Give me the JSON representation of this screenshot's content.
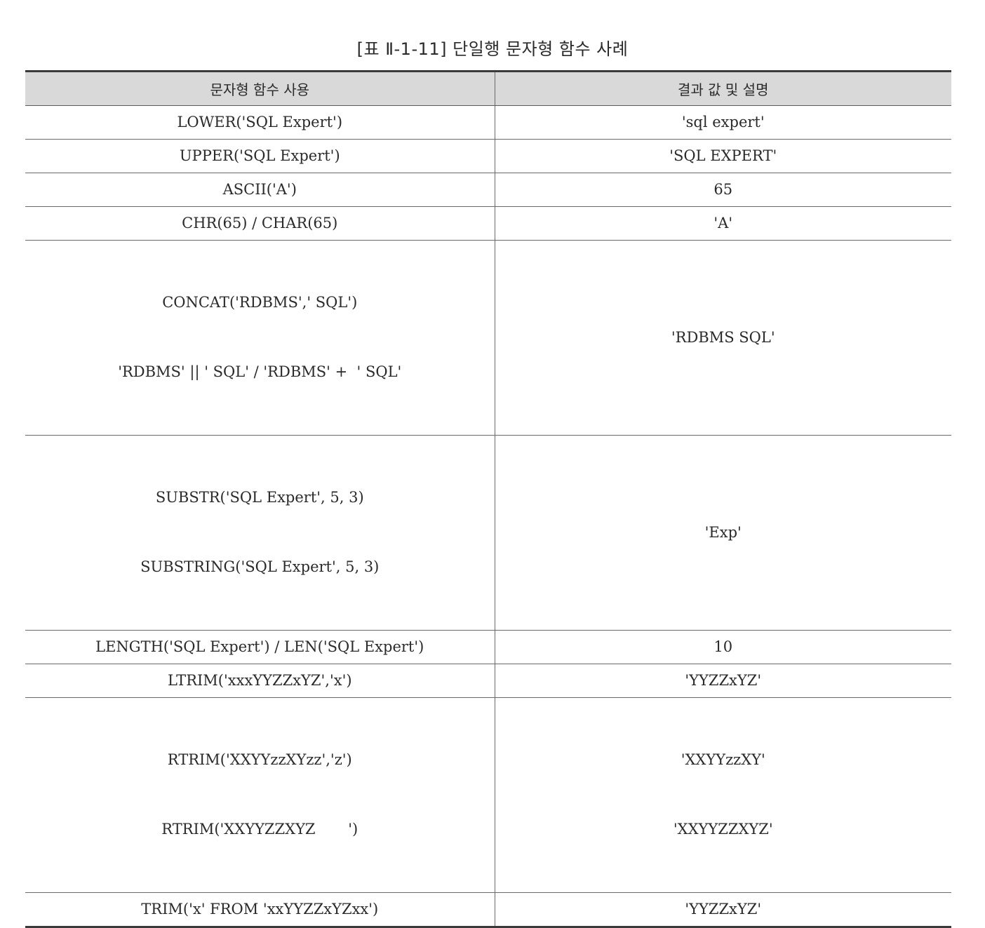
{
  "caption": "[표 Ⅱ-1-11] 단일행 문자형 함수 사례",
  "table": {
    "headers": [
      "문자형 함수 사용",
      "결과 값 및 설명"
    ],
    "rows": [
      {
        "usage": [
          "LOWER('SQL Expert')"
        ],
        "result": [
          "'sql expert'"
        ]
      },
      {
        "usage": [
          "UPPER('SQL Expert')"
        ],
        "result": [
          "'SQL EXPERT'"
        ]
      },
      {
        "usage": [
          "ASCII('A')"
        ],
        "result": [
          "65"
        ]
      },
      {
        "usage": [
          "CHR(65) / CHAR(65)"
        ],
        "result": [
          "'A'"
        ]
      },
      {
        "usage": [
          "CONCAT('RDBMS',' SQL')",
          "'RDBMS' || ' SQL' / 'RDBMS' +  ' SQL'"
        ],
        "result": [
          "'RDBMS SQL'"
        ]
      },
      {
        "usage": [
          "SUBSTR('SQL Expert', 5, 3)",
          "SUBSTRING('SQL Expert', 5, 3)"
        ],
        "result": [
          "'Exp'"
        ]
      },
      {
        "usage": [
          "LENGTH('SQL Expert') / LEN('SQL Expert')"
        ],
        "result": [
          "10"
        ]
      },
      {
        "usage": [
          "LTRIM('xxxYYZZxYZ','x')"
        ],
        "result": [
          "'YYZZxYZ'"
        ]
      },
      {
        "usage": [
          "RTRIM('XXYYzzXYzz','z')",
          "RTRIM('XXYYZZXYZ       ')"
        ],
        "result": [
          "'XXYYzzXY'",
          "'XXYYZZXYZ'"
        ]
      },
      {
        "usage": [
          "TRIM('x' FROM 'xxYYZZxYZxx')"
        ],
        "result": [
          "'YYZZxYZ'"
        ]
      }
    ]
  }
}
